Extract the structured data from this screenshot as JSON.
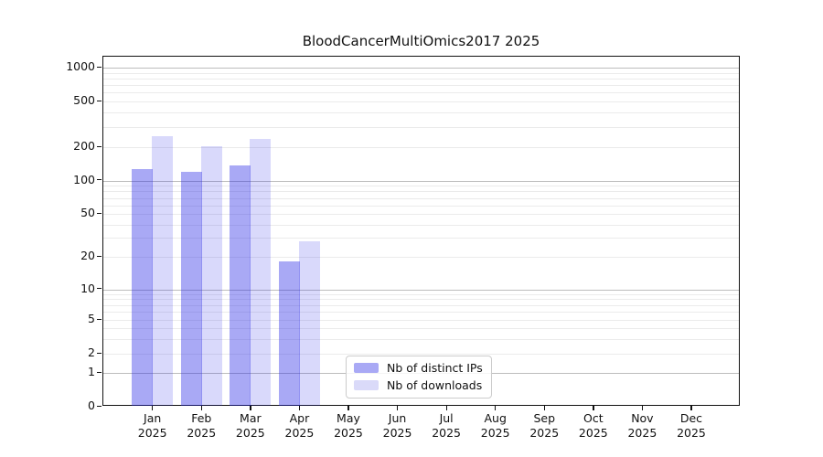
{
  "title": "BloodCancerMultiOmics2017 2025",
  "chart_data": {
    "type": "bar",
    "title": "BloodCancerMultiOmics2017 2025",
    "categories": [
      "Jan",
      "Feb",
      "Mar",
      "Apr",
      "May",
      "Jun",
      "Jul",
      "Aug",
      "Sep",
      "Oct",
      "Nov",
      "Dec"
    ],
    "category_year": "2025",
    "series": [
      {
        "name": "Nb of distinct IPs",
        "color": "#a9a9f5",
        "rgba": "rgba(40,40,230,0.40)",
        "values": [
          127,
          121,
          136,
          18,
          0,
          0,
          0,
          0,
          0,
          0,
          0,
          0
        ]
      },
      {
        "name": "Nb of downloads",
        "color": "#dadaf9",
        "rgba": "rgba(40,40,230,0.177)",
        "values": [
          247,
          205,
          236,
          28,
          0,
          0,
          0,
          0,
          0,
          0,
          0,
          0
        ]
      }
    ],
    "yscale": "symlog",
    "yticks": [
      0,
      1,
      2,
      5,
      10,
      20,
      50,
      100,
      200,
      500,
      1000
    ],
    "y_major_gridlines": [
      1,
      10,
      100,
      1000
    ],
    "y_minor_gridlines": [
      2,
      3,
      4,
      5,
      6,
      7,
      8,
      9,
      20,
      30,
      40,
      50,
      60,
      70,
      80,
      90,
      200,
      300,
      400,
      500,
      600,
      700,
      800,
      900
    ],
    "ylim": [
      0,
      1216
    ],
    "grid": true,
    "legend_position": "lower-center"
  },
  "colors": {
    "spine": "#111111",
    "grid_major": "#bdbdbd",
    "grid_minor": "#ebebeb",
    "text": "#111111",
    "background": "#ffffff"
  }
}
